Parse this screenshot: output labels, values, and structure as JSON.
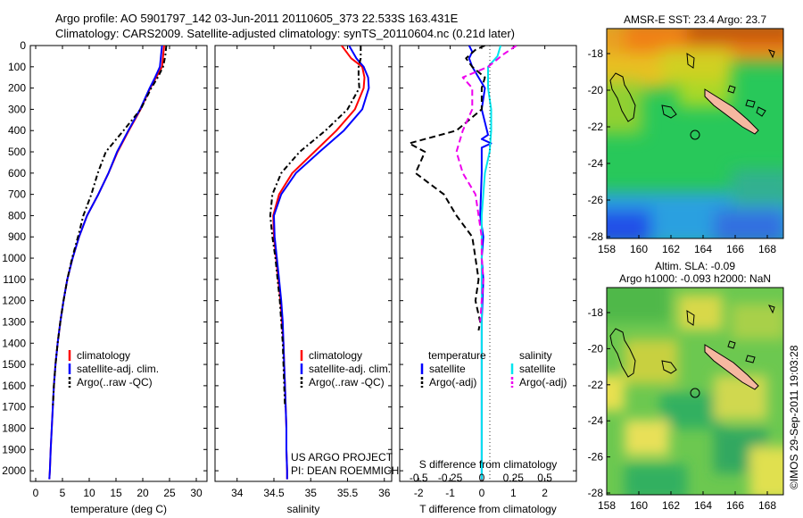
{
  "header": {
    "line1": "Argo profile: AO 5901797_142 03-Jun-2011 20110605_373 22.533S 163.431E",
    "line2": "Climatology: CARS2009. Satellite-adjusted climatology: synTS_20110604.nc (0.21d later)"
  },
  "colors": {
    "climatology": "#ff0000",
    "satellite": "#0000ff",
    "argo": "#000000",
    "salinity_satellite": "#00e5ee",
    "salinity_argo": "#ee00ee",
    "land": "#f5b8a0"
  },
  "depth_axis": {
    "ylim": [
      0,
      2050
    ],
    "ticks": [
      0,
      100,
      200,
      300,
      400,
      500,
      600,
      700,
      800,
      900,
      1000,
      1100,
      1200,
      1300,
      1400,
      1500,
      1600,
      1700,
      1800,
      1900,
      2000
    ]
  },
  "chart_data": [
    {
      "id": "temperature",
      "type": "line",
      "xlabel": "temperature (deg C)",
      "xlim": [
        -1,
        32
      ],
      "xticks": [
        0,
        5,
        10,
        15,
        20,
        25,
        30
      ],
      "legend": [
        "climatology",
        "satellite-adj. clim.",
        "Argo(..raw -QC)"
      ],
      "series": [
        {
          "name": "climatology",
          "color": "#ff0000",
          "dash": "",
          "points": [
            [
              24,
              0
            ],
            [
              23.8,
              50
            ],
            [
              23.6,
              100
            ],
            [
              22.5,
              150
            ],
            [
              21.4,
              200
            ],
            [
              19.6,
              300
            ],
            [
              17.4,
              400
            ],
            [
              15.3,
              500
            ],
            [
              13.6,
              600
            ],
            [
              11.7,
              700
            ],
            [
              9.6,
              800
            ],
            [
              8.1,
              900
            ],
            [
              6.9,
              1000
            ],
            [
              5.9,
              1100
            ],
            [
              5.2,
              1200
            ],
            [
              4.6,
              1300
            ],
            [
              4.1,
              1400
            ],
            [
              3.7,
              1500
            ],
            [
              3.4,
              1600
            ],
            [
              3.2,
              1700
            ],
            [
              3.0,
              1800
            ],
            [
              2.8,
              1900
            ],
            [
              2.65,
              2000
            ],
            [
              2.55,
              2040
            ]
          ]
        },
        {
          "name": "satellite-adj. clim.",
          "color": "#0000ff",
          "dash": "",
          "points": [
            [
              23.6,
              0
            ],
            [
              23.4,
              50
            ],
            [
              23.2,
              100
            ],
            [
              22.3,
              150
            ],
            [
              21.3,
              200
            ],
            [
              19.5,
              300
            ],
            [
              17.3,
              400
            ],
            [
              15.2,
              500
            ],
            [
              13.6,
              600
            ],
            [
              11.7,
              700
            ],
            [
              9.6,
              800
            ],
            [
              8.1,
              900
            ],
            [
              6.9,
              1000
            ],
            [
              5.9,
              1100
            ],
            [
              5.2,
              1200
            ],
            [
              4.6,
              1300
            ],
            [
              4.1,
              1400
            ],
            [
              3.7,
              1500
            ],
            [
              3.4,
              1600
            ],
            [
              3.2,
              1700
            ],
            [
              3.0,
              1800
            ],
            [
              2.8,
              1900
            ],
            [
              2.65,
              2000
            ],
            [
              2.55,
              2040
            ]
          ]
        },
        {
          "name": "Argo(..raw -QC)",
          "color": "#000000",
          "dash": "6,3,2,3",
          "points": [
            [
              24.4,
              0
            ],
            [
              24.2,
              50
            ],
            [
              23.8,
              100
            ],
            [
              22.8,
              150
            ],
            [
              21.6,
              200
            ],
            [
              19.6,
              300
            ],
            [
              16.4,
              400
            ],
            [
              13.1,
              500
            ],
            [
              11.6,
              600
            ],
            [
              10.4,
              700
            ],
            [
              8.9,
              800
            ],
            [
              7.9,
              900
            ],
            [
              6.8,
              1000
            ],
            [
              5.9,
              1100
            ],
            [
              5.2,
              1200
            ],
            [
              4.6,
              1300
            ],
            [
              4.1,
              1400
            ],
            [
              3.7,
              1500
            ],
            [
              3.4,
              1600
            ],
            [
              3.2,
              1700
            ]
          ]
        }
      ]
    },
    {
      "id": "salinity",
      "type": "line",
      "xlabel": "salinity",
      "xlim": [
        33.7,
        36.1
      ],
      "xticks": [
        34,
        34.5,
        35,
        35.5,
        36
      ],
      "legend": [
        "climatology",
        "satellite-adj. clim.",
        "Argo(..raw -QC)"
      ],
      "annotation": [
        "US ARGO PROJECT",
        "PI: DEAN ROEMMICH"
      ],
      "series": [
        {
          "name": "climatology",
          "color": "#ff0000",
          "dash": "",
          "points": [
            [
              35.42,
              0
            ],
            [
              35.55,
              60
            ],
            [
              35.7,
              100
            ],
            [
              35.73,
              150
            ],
            [
              35.72,
              200
            ],
            [
              35.6,
              300
            ],
            [
              35.35,
              400
            ],
            [
              35.05,
              500
            ],
            [
              34.75,
              600
            ],
            [
              34.57,
              700
            ],
            [
              34.49,
              800
            ],
            [
              34.5,
              900
            ],
            [
              34.53,
              1000
            ],
            [
              34.56,
              1100
            ],
            [
              34.59,
              1200
            ],
            [
              34.61,
              1300
            ],
            [
              34.63,
              1400
            ],
            [
              34.64,
              1500
            ],
            [
              34.65,
              1600
            ],
            [
              34.66,
              1700
            ],
            [
              34.67,
              1800
            ],
            [
              34.67,
              1900
            ],
            [
              34.68,
              2000
            ],
            [
              34.68,
              2040
            ]
          ]
        },
        {
          "name": "satellite-adj. clim.",
          "color": "#0000ff",
          "dash": "",
          "points": [
            [
              35.52,
              0
            ],
            [
              35.62,
              60
            ],
            [
              35.72,
              100
            ],
            [
              35.78,
              150
            ],
            [
              35.79,
              200
            ],
            [
              35.7,
              300
            ],
            [
              35.45,
              400
            ],
            [
              35.12,
              500
            ],
            [
              34.8,
              600
            ],
            [
              34.6,
              700
            ],
            [
              34.5,
              800
            ],
            [
              34.51,
              900
            ],
            [
              34.54,
              1000
            ],
            [
              34.57,
              1100
            ],
            [
              34.6,
              1200
            ],
            [
              34.62,
              1300
            ],
            [
              34.63,
              1400
            ],
            [
              34.64,
              1500
            ],
            [
              34.65,
              1600
            ],
            [
              34.66,
              1700
            ],
            [
              34.67,
              1800
            ],
            [
              34.67,
              1900
            ],
            [
              34.68,
              2000
            ],
            [
              34.68,
              2040
            ]
          ]
        },
        {
          "name": "Argo(..raw -QC)",
          "color": "#000000",
          "dash": "6,3,2,3",
          "points": [
            [
              35.68,
              0
            ],
            [
              35.68,
              60
            ],
            [
              35.65,
              100
            ],
            [
              35.65,
              150
            ],
            [
              35.66,
              200
            ],
            [
              35.5,
              300
            ],
            [
              35.2,
              400
            ],
            [
              34.85,
              500
            ],
            [
              34.6,
              600
            ],
            [
              34.48,
              700
            ],
            [
              34.45,
              800
            ],
            [
              34.48,
              900
            ],
            [
              34.52,
              1000
            ],
            [
              34.55,
              1100
            ],
            [
              34.58,
              1200
            ],
            [
              34.6,
              1300
            ],
            [
              34.62,
              1400
            ],
            [
              34.63,
              1500
            ],
            [
              34.64,
              1600
            ],
            [
              34.65,
              1700
            ]
          ]
        }
      ]
    },
    {
      "id": "differences",
      "type": "line",
      "xlabel": "T difference from climatology",
      "xlabel2": "S difference from climatology",
      "xlim": [
        -2.6,
        3.0
      ],
      "xticks": [
        -2,
        -1,
        0,
        1,
        2
      ],
      "xticks2_labels": [
        "-0.5",
        "-0.25",
        "0",
        "0.25",
        "0.5"
      ],
      "xticks2_positions": [
        -2,
        -1,
        0,
        1,
        2
      ],
      "legend_titles": [
        "temperature",
        "salinity"
      ],
      "legend": [
        "satellite",
        "Argo(-adj)",
        "satellite",
        "Argo(-adj)"
      ],
      "series": [
        {
          "name": "temperature satellite",
          "color": "#0000ff",
          "dash": "",
          "points": [
            [
              -0.4,
              0
            ],
            [
              -0.3,
              30
            ],
            [
              -0.4,
              60
            ],
            [
              -0.3,
              100
            ],
            [
              -0.1,
              150
            ],
            [
              0.1,
              200
            ],
            [
              0.0,
              300
            ],
            [
              0.2,
              420
            ],
            [
              0.0,
              440
            ],
            [
              0.3,
              460
            ],
            [
              0.0,
              480
            ],
            [
              0.0,
              600
            ],
            [
              -0.05,
              800
            ],
            [
              0.05,
              900
            ],
            [
              0.0,
              1000
            ],
            [
              0.05,
              1100
            ],
            [
              0.0,
              1300
            ],
            [
              0.0,
              1500
            ],
            [
              0.0,
              2040
            ]
          ]
        },
        {
          "name": "temperature Argo(-adj)",
          "color": "#000000",
          "dash": "7,4",
          "points": [
            [
              0.1,
              0
            ],
            [
              -0.2,
              20
            ],
            [
              -0.5,
              60
            ],
            [
              -0.3,
              100
            ],
            [
              0.1,
              150
            ],
            [
              0.0,
              200
            ],
            [
              0.0,
              300
            ],
            [
              -0.8,
              400
            ],
            [
              -2.3,
              460
            ],
            [
              -1.8,
              500
            ],
            [
              -2.1,
              600
            ],
            [
              -1.2,
              700
            ],
            [
              -0.8,
              800
            ],
            [
              -0.3,
              900
            ],
            [
              -0.2,
              1000
            ],
            [
              -0.1,
              1100
            ],
            [
              -0.2,
              1200
            ],
            [
              -0.05,
              1300
            ],
            [
              -0.1,
              1340
            ]
          ]
        },
        {
          "name": "salinity satellite",
          "color": "#00e5ee",
          "dash": "",
          "points": [
            [
              0.6,
              0
            ],
            [
              0.5,
              50
            ],
            [
              0.2,
              100
            ],
            [
              0.2,
              150
            ],
            [
              0.2,
              200
            ],
            [
              0.3,
              300
            ],
            [
              0.3,
              400
            ],
            [
              0.25,
              500
            ],
            [
              0.1,
              600
            ],
            [
              0.05,
              700
            ],
            [
              0.0,
              800
            ],
            [
              0.0,
              1000
            ],
            [
              0.0,
              1500
            ],
            [
              0.0,
              2040
            ]
          ]
        },
        {
          "name": "salinity Argo(-adj)",
          "color": "#ee00ee",
          "dash": "7,4",
          "points": [
            [
              1.1,
              0
            ],
            [
              0.7,
              40
            ],
            [
              0.2,
              100
            ],
            [
              -0.6,
              150
            ],
            [
              -0.3,
              200
            ],
            [
              -0.3,
              300
            ],
            [
              -0.6,
              400
            ],
            [
              -0.8,
              500
            ],
            [
              -0.6,
              600
            ],
            [
              -0.2,
              700
            ],
            [
              -0.1,
              800
            ],
            [
              0.0,
              900
            ],
            [
              0.0,
              1000
            ],
            [
              0.05,
              1100
            ],
            [
              0.0,
              1200
            ],
            [
              -0.05,
              1300
            ]
          ]
        }
      ]
    }
  ],
  "maps": {
    "sst": {
      "title": "AMSR-E SST: 23.4  Argo: 23.7",
      "yticks": [
        "-18",
        "-20",
        "-22",
        "-24",
        "-26",
        "-28"
      ],
      "xticks": [
        "158",
        "160",
        "162",
        "164",
        "166",
        "168"
      ]
    },
    "sla": {
      "title1": "Altim. SLA: -0.09",
      "title2": "Argo h1000: -0.093 h2000: NaN",
      "yticks": [
        "-18",
        "-20",
        "-22",
        "-24",
        "-26",
        "-28"
      ],
      "xticks": [
        "158",
        "160",
        "162",
        "164",
        "166",
        "168"
      ]
    }
  },
  "footer": {
    "stamp": "©IMOS 29-Sep-2011 19:03:28"
  }
}
